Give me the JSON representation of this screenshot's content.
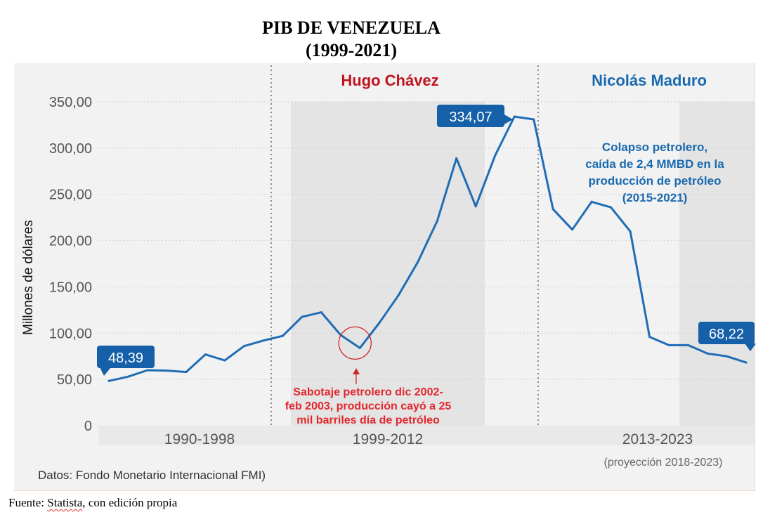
{
  "title": "PIB DE VENEZUELA",
  "subtitle": "(1999-2021)",
  "footer": {
    "prefix": "Fuente: ",
    "source": "Statista",
    "suffix": ", con edición propia"
  },
  "chart_data": {
    "type": "line",
    "ylabel": "Millones de dólares",
    "ylim": [
      0,
      350
    ],
    "yticks": [
      "350,00",
      "300,00",
      "250,00",
      "200,00",
      "150,00",
      "100,00",
      "50,00",
      "0"
    ],
    "ytick_values": [
      350,
      300,
      250,
      200,
      150,
      100,
      50,
      0
    ],
    "period_labels": [
      "1990-1998",
      "1999-2012",
      "2013-2023"
    ],
    "period_headers": [
      "Hugo Chávez",
      "Nicolás Maduro"
    ],
    "projection_note": "(proyección 2018-2023)",
    "data_source": "Datos: Fondo Monetario Internacional FMI)",
    "x": [
      1990,
      1991,
      1992,
      1993,
      1994,
      1995,
      1996,
      1997,
      1998,
      1999,
      2000,
      2001,
      2002,
      2003,
      2004,
      2005,
      2006,
      2007,
      2008,
      2009,
      2010,
      2011,
      2012,
      2013,
      2014,
      2015,
      2016,
      2017,
      2018,
      2019,
      2020,
      2021,
      2022,
      2023
    ],
    "values": [
      48.39,
      53,
      60,
      59.5,
      58,
      77,
      70.5,
      86,
      92,
      97,
      117.5,
      122.5,
      98,
      84,
      111,
      141,
      177,
      221,
      289,
      237,
      292,
      334.07,
      331,
      234,
      212,
      242,
      236,
      210,
      96,
      87,
      87,
      78,
      75,
      68.22
    ],
    "callouts": [
      {
        "label": "48,39",
        "year": 1990
      },
      {
        "label": "334,07",
        "year": 2011
      },
      {
        "label": "68,22",
        "year": 2023
      }
    ],
    "annotations": {
      "sabotage": [
        "Sabotaje petrolero dic 2002-",
        "feb 2003, producción cayó a 25",
        "mil barriles día de petróleo"
      ],
      "collapse": [
        "Colapso petrolero,",
        "caída de 2,4 MMBD en la",
        "producción de petróleo",
        "(2015-2021)"
      ]
    },
    "colors": {
      "line": "#1f6db5",
      "callout": "#1560a8",
      "chavez": "#c0141c",
      "maduro": "#1a6ab0",
      "sabotage": "#e3262c",
      "shade": "#e4e4e4",
      "panel": "#f2f2f2"
    }
  }
}
